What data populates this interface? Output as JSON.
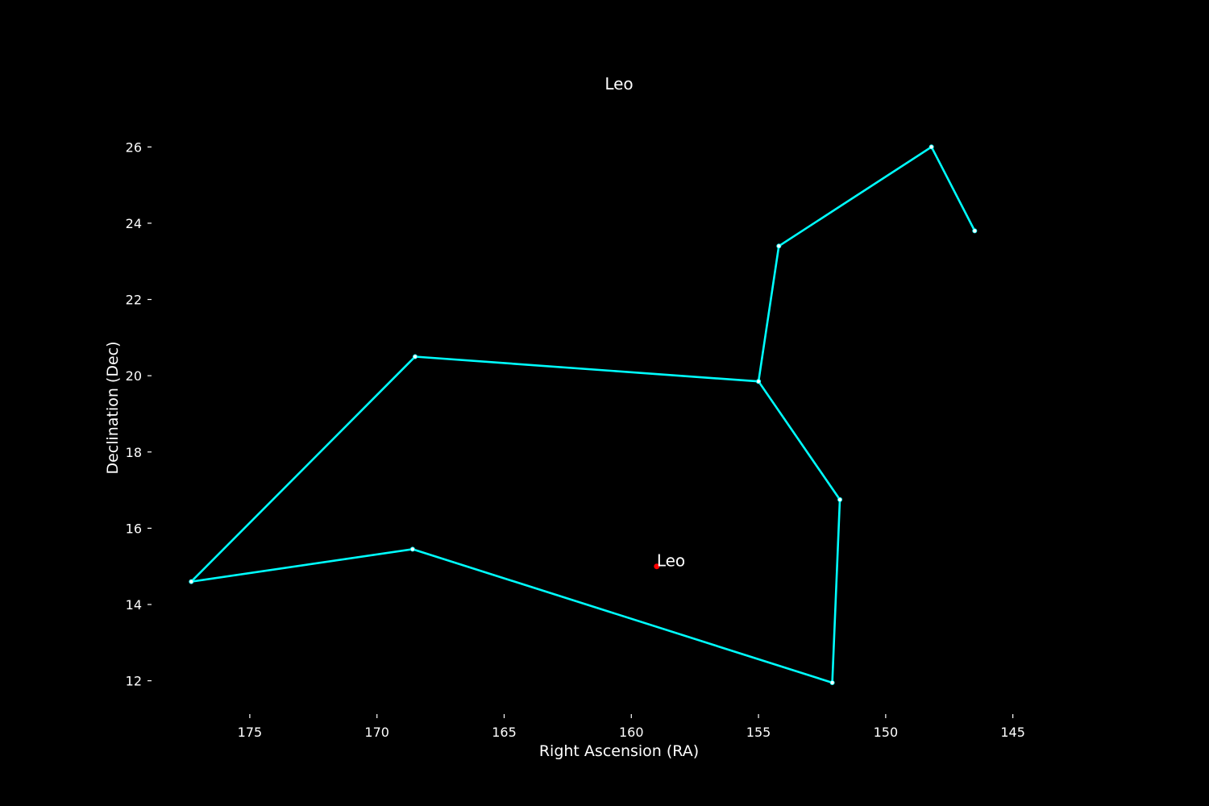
{
  "chart_data": {
    "type": "line",
    "title": "Leo",
    "xlabel": "Right Ascension (RA)",
    "ylabel": "Declination (Dec)",
    "x_inverted": true,
    "xlim": [
      178.8,
      142.2
    ],
    "ylim": [
      11.4,
      27.0
    ],
    "xticks": [
      175,
      170,
      165,
      160,
      155,
      150,
      145
    ],
    "yticks": [
      12,
      14,
      16,
      18,
      20,
      22,
      24,
      26
    ],
    "grid": false,
    "background_color": "#000000",
    "line_color": "#00ffff",
    "marker_color": "#ffffff",
    "series": [
      {
        "x": [
          146.5,
          148.2,
          154.2,
          155.0,
          168.5,
          177.3,
          168.6,
          152.1,
          151.8,
          155.0
        ],
        "y": [
          23.8,
          26.0,
          23.4,
          19.85,
          20.5,
          14.6,
          15.45,
          11.95,
          16.75,
          19.85
        ]
      }
    ],
    "annotations": [
      {
        "text": "Leo",
        "x": 159.0,
        "y": 15.0,
        "marker_color": "#ff0000"
      }
    ]
  }
}
